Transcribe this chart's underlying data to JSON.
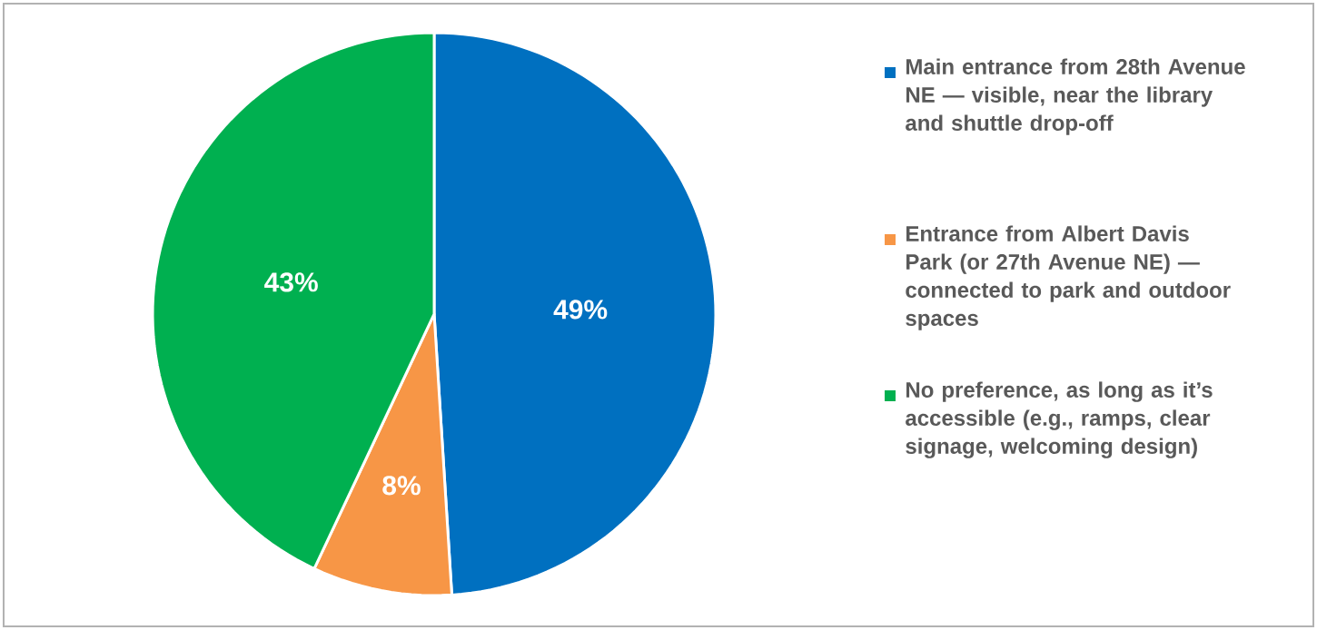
{
  "chart_data": {
    "type": "pie",
    "categories": [
      "Main entrance from 28th Avenue NE — visible, near the library and shuttle drop-off",
      "Entrance from Albert Davis Park (or 27th Avenue NE) — connected to park and outdoor spaces",
      "No preference, as long as it’s accessible (e.g., ramps, clear signage, welcoming design)"
    ],
    "values": [
      49,
      8,
      43
    ],
    "colors": [
      "#0070c0",
      "#f79646",
      "#00b050"
    ],
    "value_labels": [
      "49%",
      "8%",
      "43%"
    ],
    "legend": "right"
  }
}
